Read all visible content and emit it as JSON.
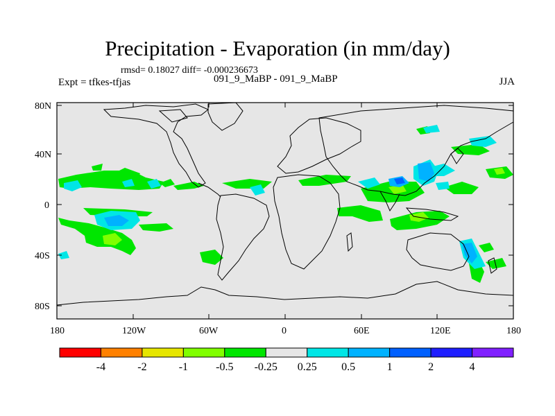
{
  "title": "Precipitation - Evaporation (in mm/day)",
  "stats_line": "rmsd= 0.18027 diff= -0.000236673",
  "expt_label": "Expt = tfkes-tfjas",
  "cases_label": "091_9_MaBP - 091_9_MaBP",
  "season": "JJA",
  "lat_ticks": [
    "80N",
    "40N",
    "0",
    "40S",
    "80S"
  ],
  "lon_ticks": [
    "180",
    "120W",
    "60W",
    "0",
    "60E",
    "120E",
    "180"
  ],
  "colorbar": {
    "colors": [
      "#ff0000",
      "#ff8000",
      "#e6e600",
      "#80ff00",
      "#00e600",
      "#e6e6e6",
      "#00e6e6",
      "#00b2ff",
      "#0060ff",
      "#1e1eff",
      "#8020ff"
    ],
    "labels": [
      "-4",
      "-2",
      "-1",
      "-0.5",
      "-0.25",
      "0.25",
      "0.5",
      "1",
      "2",
      "4"
    ]
  },
  "background_color": "#e6e6e6"
}
